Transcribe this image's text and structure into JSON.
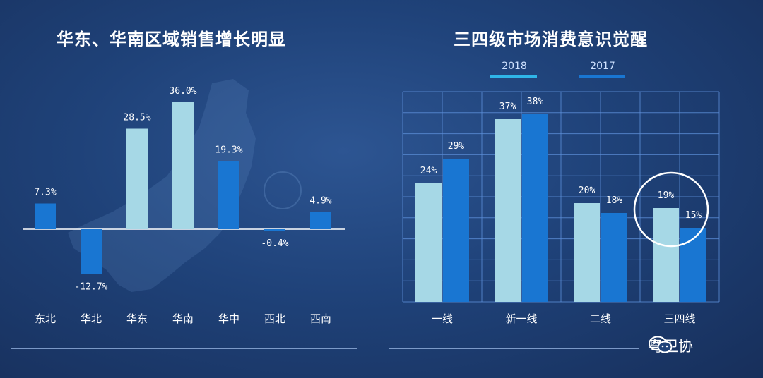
{
  "chart_data": [
    {
      "type": "bar",
      "title": "华东、华南区域销售增长明显",
      "categories": [
        "东北",
        "华北",
        "华东",
        "华南",
        "华中",
        "西北",
        "西南"
      ],
      "values": [
        7.3,
        -12.7,
        28.5,
        36.0,
        19.3,
        -0.4,
        4.9
      ],
      "value_labels": [
        "7.3%",
        "-12.7%",
        "28.5%",
        "36.0%",
        "19.3%",
        "-0.4%",
        "4.9%"
      ],
      "bar_colors": [
        "#1976d2",
        "#1976d2",
        "#a6d8e6",
        "#a6d8e6",
        "#1976d2",
        "#1976d2",
        "#1976d2"
      ],
      "grid": false
    },
    {
      "type": "bar",
      "title": "三四级市场消费意识觉醒",
      "categories": [
        "一线",
        "新一线",
        "二线",
        "三四线"
      ],
      "series": [
        {
          "name": "2018",
          "values": [
            24,
            37,
            20,
            19
          ],
          "labels": [
            "24%",
            "37%",
            "20%",
            "19%"
          ],
          "color": "#a6d8e6"
        },
        {
          "name": "2017",
          "values": [
            29,
            38,
            18,
            15
          ],
          "labels": [
            "29%",
            "38%",
            "18%",
            "15%"
          ],
          "color": "#1976d2"
        }
      ],
      "legend_position": "top",
      "grid": true,
      "highlight": "三四线"
    }
  ],
  "watermark": {
    "text": "粤卫协",
    "icon": "wechat-icon"
  }
}
